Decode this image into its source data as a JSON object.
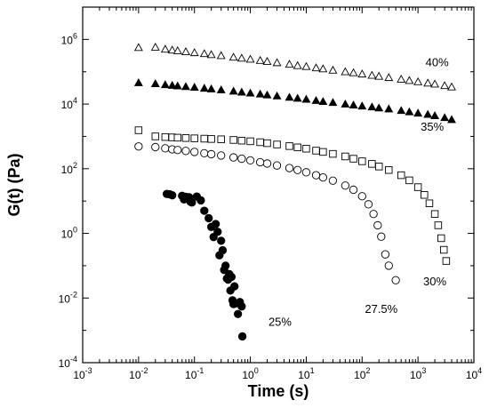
{
  "chart_data": {
    "type": "scatter",
    "xlabel": "Time (s)",
    "ylabel": "G(t) (Pa)",
    "xscale": "log",
    "yscale": "log",
    "xlim": [
      0.001,
      10000
    ],
    "ylim": [
      0.0001,
      10000000
    ],
    "grid": false,
    "xticks": [
      {
        "value": 0.001,
        "base": "10",
        "exp": "-3"
      },
      {
        "value": 0.01,
        "base": "10",
        "exp": "-2"
      },
      {
        "value": 0.1,
        "base": "10",
        "exp": "-1"
      },
      {
        "value": 1,
        "base": "10",
        "exp": "0"
      },
      {
        "value": 10,
        "base": "10",
        "exp": "1"
      },
      {
        "value": 100,
        "base": "10",
        "exp": "2"
      },
      {
        "value": 1000,
        "base": "10",
        "exp": "3"
      },
      {
        "value": 10000,
        "base": "10",
        "exp": "4"
      }
    ],
    "yticks": [
      {
        "value": 0.0001,
        "base": "10",
        "exp": "-4"
      },
      {
        "value": 0.01,
        "base": "10",
        "exp": "-2"
      },
      {
        "value": 1,
        "base": "10",
        "exp": "0"
      },
      {
        "value": 100,
        "base": "10",
        "exp": "2"
      },
      {
        "value": 10000,
        "base": "10",
        "exp": "4"
      },
      {
        "value": 1000000,
        "base": "10",
        "exp": "6"
      }
    ],
    "series": [
      {
        "label": "40%",
        "marker": "triangle-open",
        "label_position": {
          "x": 2200,
          "y": 150000
        },
        "points": [
          [
            0.01,
            562000
          ],
          [
            0.02,
            575000
          ],
          [
            0.03,
            500000
          ],
          [
            0.04,
            468000
          ],
          [
            0.05,
            447000
          ],
          [
            0.07,
            417000
          ],
          [
            0.1,
            389000
          ],
          [
            0.15,
            363000
          ],
          [
            0.2,
            339000
          ],
          [
            0.3,
            316000
          ],
          [
            0.5,
            282000
          ],
          [
            0.7,
            263000
          ],
          [
            1,
            245000
          ],
          [
            1.5,
            224000
          ],
          [
            2,
            209000
          ],
          [
            3,
            191000
          ],
          [
            5,
            170000
          ],
          [
            7,
            155000
          ],
          [
            10,
            145000
          ],
          [
            15,
            132000
          ],
          [
            20,
            123000
          ],
          [
            30,
            112000
          ],
          [
            50,
            100000
          ],
          [
            70,
            93300
          ],
          [
            100,
            85100
          ],
          [
            150,
            77600
          ],
          [
            200,
            72400
          ],
          [
            300,
            66100
          ],
          [
            500,
            58900
          ],
          [
            700,
            53700
          ],
          [
            1000,
            49000
          ],
          [
            1500,
            44700
          ],
          [
            2000,
            41700
          ],
          [
            3000,
            37200
          ],
          [
            4000,
            33900
          ]
        ]
      },
      {
        "label": "35%",
        "marker": "triangle-filled",
        "label_position": {
          "x": 1800,
          "y": 1500
        },
        "points": [
          [
            0.01,
            45700
          ],
          [
            0.02,
            42700
          ],
          [
            0.03,
            39800
          ],
          [
            0.04,
            38000
          ],
          [
            0.05,
            36300
          ],
          [
            0.07,
            34700
          ],
          [
            0.1,
            33100
          ],
          [
            0.15,
            30900
          ],
          [
            0.2,
            29500
          ],
          [
            0.3,
            27500
          ],
          [
            0.5,
            25100
          ],
          [
            0.7,
            23400
          ],
          [
            1,
            21900
          ],
          [
            1.5,
            20400
          ],
          [
            2,
            19100
          ],
          [
            3,
            17800
          ],
          [
            5,
            16200
          ],
          [
            7,
            15100
          ],
          [
            10,
            14100
          ],
          [
            15,
            12900
          ],
          [
            20,
            12000
          ],
          [
            30,
            11200
          ],
          [
            50,
            10000
          ],
          [
            70,
            9330
          ],
          [
            100,
            8710
          ],
          [
            150,
            8130
          ],
          [
            200,
            7590
          ],
          [
            300,
            7080
          ],
          [
            500,
            6310
          ],
          [
            700,
            5750
          ],
          [
            1000,
            5250
          ],
          [
            1500,
            4790
          ],
          [
            2000,
            4370
          ],
          [
            3000,
            3800
          ],
          [
            4000,
            3310
          ]
        ]
      },
      {
        "label": "30%",
        "marker": "square-open",
        "label_position": {
          "x": 2000,
          "y": 0.025
        },
        "points": [
          [
            0.01,
            1550
          ],
          [
            0.02,
            1000
          ],
          [
            0.03,
            955
          ],
          [
            0.04,
            933
          ],
          [
            0.05,
            912
          ],
          [
            0.07,
            891
          ],
          [
            0.1,
            871
          ],
          [
            0.15,
            851
          ],
          [
            0.2,
            832
          ],
          [
            0.3,
            813
          ],
          [
            0.5,
            776
          ],
          [
            0.7,
            741
          ],
          [
            1,
            708
          ],
          [
            1.5,
            661
          ],
          [
            2,
            617
          ],
          [
            3,
            562
          ],
          [
            5,
            501
          ],
          [
            7,
            457
          ],
          [
            10,
            417
          ],
          [
            15,
            363
          ],
          [
            20,
            331
          ],
          [
            30,
            288
          ],
          [
            50,
            240
          ],
          [
            70,
            204
          ],
          [
            100,
            170
          ],
          [
            150,
            141
          ],
          [
            200,
            117
          ],
          [
            300,
            91.2
          ],
          [
            500,
            63.1
          ],
          [
            700,
            43.7
          ],
          [
            1000,
            26.9
          ],
          [
            1300,
            15.5
          ],
          [
            1600,
            8.5
          ],
          [
            2000,
            3.98
          ],
          [
            2300,
            1.78
          ],
          [
            2600,
            0.71
          ],
          [
            2900,
            0.31
          ],
          [
            3200,
            0.14
          ]
        ]
      },
      {
        "label": "27.5%",
        "marker": "circle-open",
        "label_position": {
          "x": 220,
          "y": 0.0035
        },
        "points": [
          [
            0.01,
            490
          ],
          [
            0.02,
            468
          ],
          [
            0.03,
            427
          ],
          [
            0.04,
            398
          ],
          [
            0.05,
            380
          ],
          [
            0.07,
            355
          ],
          [
            0.1,
            331
          ],
          [
            0.15,
            302
          ],
          [
            0.2,
            282
          ],
          [
            0.3,
            257
          ],
          [
            0.5,
            224
          ],
          [
            0.7,
            204
          ],
          [
            1,
            182
          ],
          [
            1.5,
            159
          ],
          [
            2,
            145
          ],
          [
            3,
            126
          ],
          [
            5,
            105
          ],
          [
            7,
            91.2
          ],
          [
            10,
            77.6
          ],
          [
            15,
            63.1
          ],
          [
            20,
            53.7
          ],
          [
            30,
            42.7
          ],
          [
            50,
            30.2
          ],
          [
            70,
            22.4
          ],
          [
            100,
            14.1
          ],
          [
            130,
            7.94
          ],
          [
            160,
            3.98
          ],
          [
            190,
            1.78
          ],
          [
            220,
            0.794
          ],
          [
            260,
            0.224
          ],
          [
            300,
            0.1
          ],
          [
            400,
            0.0355
          ]
        ]
      },
      {
        "label": "25%",
        "marker": "circle-filled",
        "label_position": {
          "x": 3.4,
          "y": 0.0014
        },
        "points": [
          [
            0.032,
            16.6
          ],
          [
            0.036,
            16.2
          ],
          [
            0.04,
            15.1
          ],
          [
            0.06,
            14.5
          ],
          [
            0.065,
            11.2
          ],
          [
            0.07,
            13.5
          ],
          [
            0.08,
            13.2
          ],
          [
            0.085,
            9.5
          ],
          [
            0.09,
            9.0
          ],
          [
            0.11,
            13.8
          ],
          [
            0.13,
            10.5
          ],
          [
            0.15,
            5.01
          ],
          [
            0.18,
            2.95
          ],
          [
            0.2,
            1.58
          ],
          [
            0.22,
            0.77
          ],
          [
            0.24,
            1.95
          ],
          [
            0.26,
            1.12
          ],
          [
            0.28,
            0.21
          ],
          [
            0.3,
            0.59
          ],
          [
            0.32,
            0.3
          ],
          [
            0.34,
            0.074
          ],
          [
            0.36,
            0.1
          ],
          [
            0.38,
            0.04
          ],
          [
            0.4,
            0.037
          ],
          [
            0.42,
            0.055
          ],
          [
            0.44,
            0.017
          ],
          [
            0.46,
            0.045
          ],
          [
            0.48,
            0.0085
          ],
          [
            0.5,
            0.0065
          ],
          [
            0.52,
            0.023
          ],
          [
            0.55,
            0.0068
          ],
          [
            0.6,
            0.0032
          ],
          [
            0.65,
            0.0075
          ],
          [
            0.7,
            0.0055
          ],
          [
            0.72,
            0.00065
          ]
        ]
      }
    ]
  }
}
